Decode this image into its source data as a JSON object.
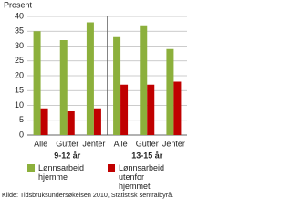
{
  "chart_data": {
    "type": "bar",
    "y_label": "Prosent",
    "categories": [
      "Alle",
      "Gutter",
      "Jenter",
      "Alle",
      "Gutter",
      "Jenter"
    ],
    "group_labels": [
      "9-12 år",
      "13-15 år"
    ],
    "series": [
      {
        "name": "Lønnsarbeid hjemme",
        "color": "#8cb03c",
        "values": [
          35,
          32,
          38,
          33,
          37,
          29
        ]
      },
      {
        "name": "Lønnsarbeid utenfor hjemmet",
        "color": "#c00000",
        "values": [
          9,
          8,
          9,
          17,
          17,
          18
        ]
      }
    ],
    "ylim": [
      0,
      40
    ],
    "yticks": [
      0,
      5,
      10,
      15,
      20,
      25,
      30,
      35,
      40
    ],
    "grid": true,
    "source": "Kilde: Tidsbruksundersøkelsen 2010, Statistisk sentralbyrå."
  }
}
